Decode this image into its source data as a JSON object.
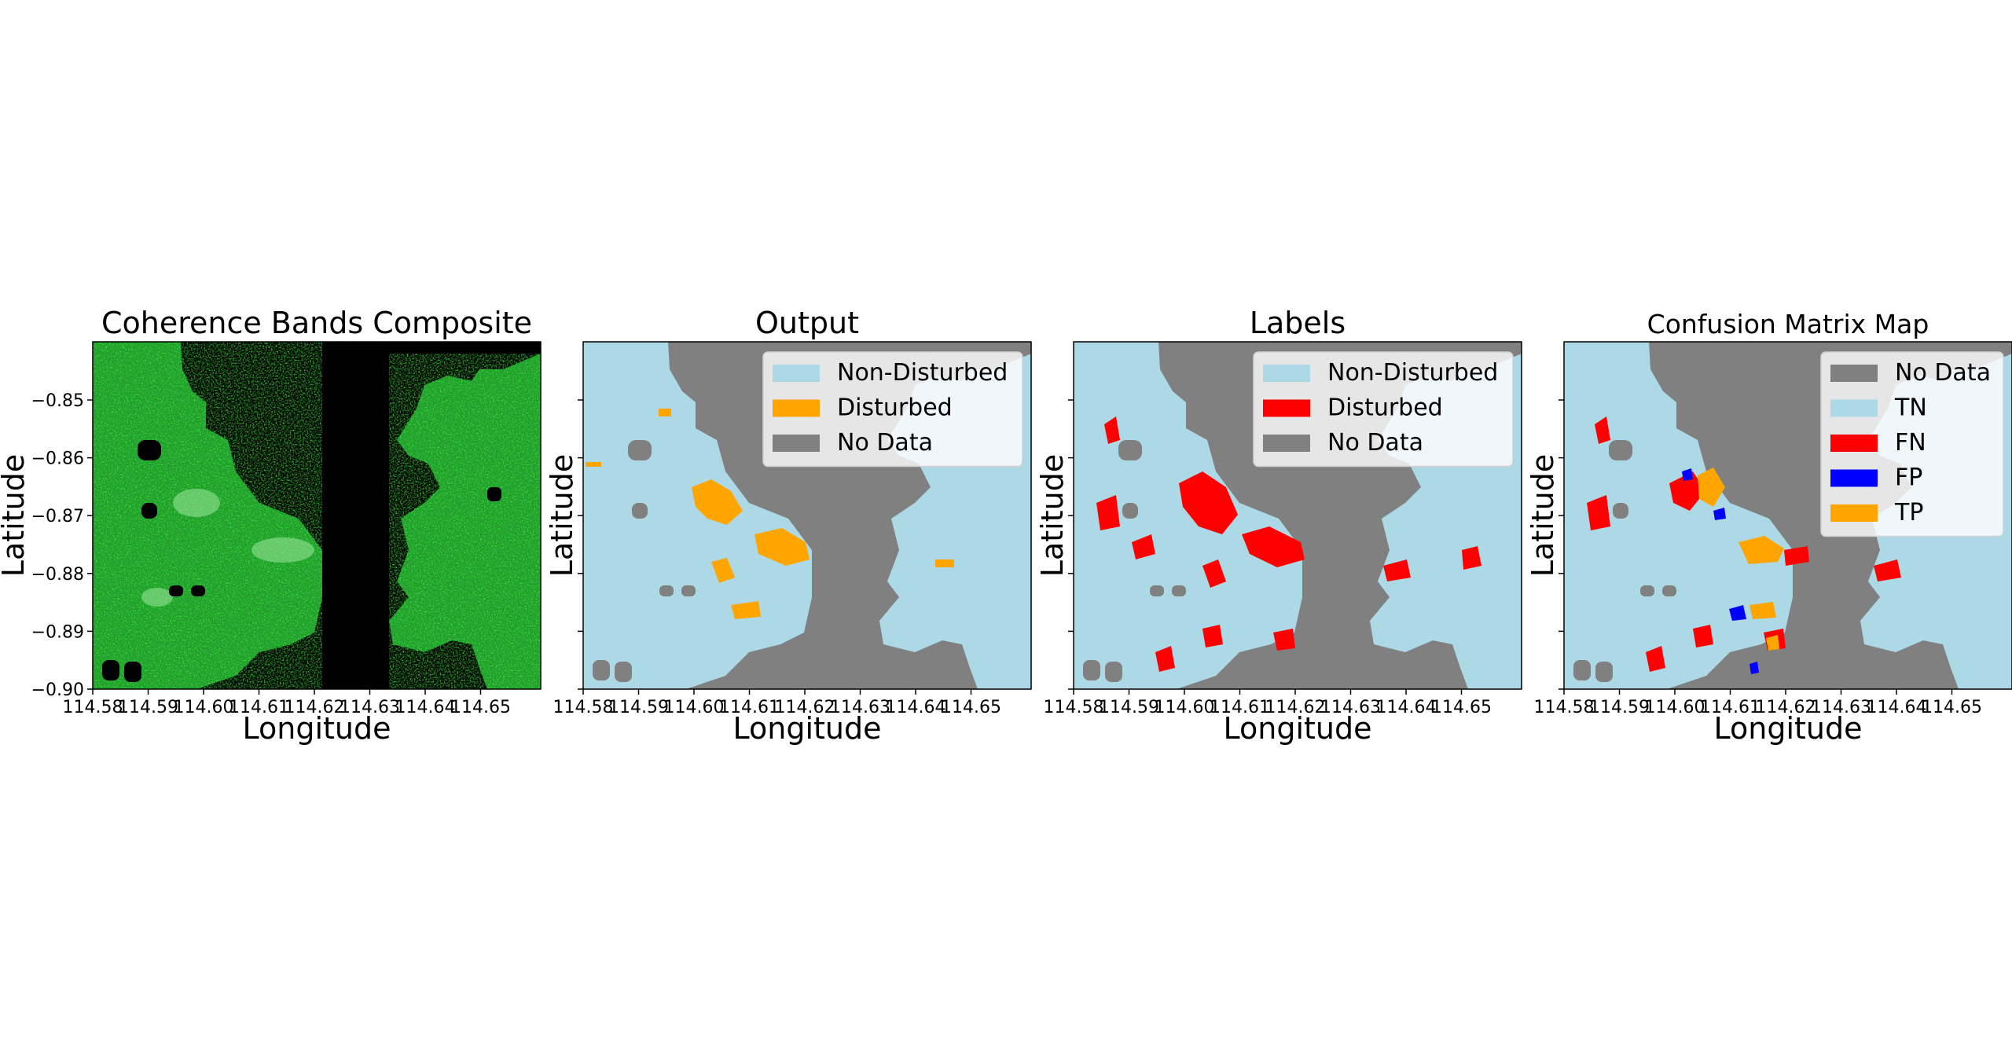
{
  "colors": {
    "no_data": "#808080",
    "non_disturbed": "#add8e6",
    "disturbed_output": "#ffa500",
    "disturbed_label": "#ff0000",
    "tn": "#add8e6",
    "fn": "#ff0000",
    "fp": "#0000ff",
    "tp": "#ffa500",
    "coherence_bg": "#000000",
    "coherence_green": "#2fb83a"
  },
  "shared_axes": {
    "xlabel": "Longitude",
    "ylabel": "Latitude",
    "x_ticks": [
      "114.58",
      "114.59",
      "114.60",
      "114.61",
      "114.62",
      "114.63",
      "114.64",
      "114.65"
    ],
    "y_ticks": [
      "−0.85",
      "−0.86",
      "−0.87",
      "−0.88",
      "−0.89",
      "−0.90"
    ]
  },
  "panels": [
    {
      "title": "Coherence Bands Composite",
      "legend": []
    },
    {
      "title": "Output",
      "legend": [
        {
          "label": "Non-Disturbed",
          "color": "#add8e6"
        },
        {
          "label": "Disturbed",
          "color": "#ffa500"
        },
        {
          "label": "No Data",
          "color": "#808080"
        }
      ]
    },
    {
      "title": "Labels",
      "legend": [
        {
          "label": "Non-Disturbed",
          "color": "#add8e6"
        },
        {
          "label": "Disturbed",
          "color": "#ff0000"
        },
        {
          "label": "No Data",
          "color": "#808080"
        }
      ]
    },
    {
      "title": "Confusion Matrix Map",
      "legend": [
        {
          "label": "No Data",
          "color": "#808080"
        },
        {
          "label": "TN",
          "color": "#add8e6"
        },
        {
          "label": "FN",
          "color": "#ff0000"
        },
        {
          "label": "FP",
          "color": "#0000ff"
        },
        {
          "label": "TP",
          "color": "#ffa500"
        }
      ]
    }
  ]
}
